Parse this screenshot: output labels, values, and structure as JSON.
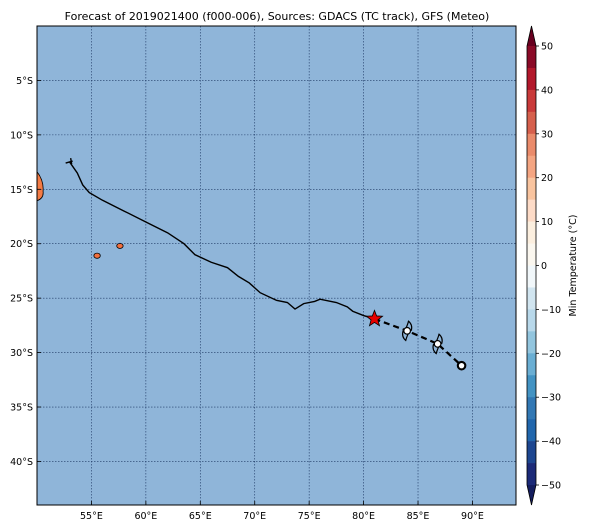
{
  "title": "Forecast of 2019021400 (f000-006), Sources: GDACS (TC track), GFS (Meteo)",
  "map": {
    "lon_range": [
      50,
      94
    ],
    "lat_range": [
      -44,
      0
    ],
    "lon_ticks": [
      {
        "value": 55,
        "label": "55°E"
      },
      {
        "value": 60,
        "label": "60°E"
      },
      {
        "value": 65,
        "label": "65°E"
      },
      {
        "value": 70,
        "label": "70°E"
      },
      {
        "value": 75,
        "label": "75°E"
      },
      {
        "value": 80,
        "label": "80°E"
      },
      {
        "value": 85,
        "label": "85°E"
      },
      {
        "value": 90,
        "label": "90°E"
      }
    ],
    "lat_ticks": [
      {
        "value": -5,
        "label": "5°S"
      },
      {
        "value": -10,
        "label": "10°S"
      },
      {
        "value": -15,
        "label": "15°S"
      },
      {
        "value": -20,
        "label": "20°S"
      },
      {
        "value": -25,
        "label": "25°S"
      },
      {
        "value": -30,
        "label": "30°S"
      },
      {
        "value": -35,
        "label": "35°S"
      },
      {
        "value": -40,
        "label": "40°S"
      }
    ],
    "ocean_color": "#8fb5d9",
    "grid": true,
    "past_track": [
      [
        53.0,
        -12.5
      ],
      [
        53.7,
        -13.5
      ],
      [
        54.2,
        -14.6
      ],
      [
        54.8,
        -15.3
      ],
      [
        56.0,
        -16.0
      ],
      [
        58.0,
        -17.0
      ],
      [
        60.0,
        -18.0
      ],
      [
        62.0,
        -19.0
      ],
      [
        63.5,
        -20.0
      ],
      [
        64.5,
        -21.0
      ],
      [
        66.0,
        -21.7
      ],
      [
        67.5,
        -22.2
      ],
      [
        68.5,
        -23.0
      ],
      [
        69.5,
        -23.6
      ],
      [
        70.5,
        -24.5
      ],
      [
        72.0,
        -25.2
      ],
      [
        73.0,
        -25.4
      ],
      [
        73.7,
        -26.0
      ],
      [
        74.5,
        -25.5
      ],
      [
        75.5,
        -25.3
      ],
      [
        76.0,
        -25.1
      ],
      [
        77.5,
        -25.4
      ],
      [
        78.5,
        -25.8
      ],
      [
        79.0,
        -26.2
      ],
      [
        80.0,
        -26.6
      ],
      [
        81.0,
        -26.9
      ]
    ],
    "current_position": [
      81.0,
      -26.9
    ],
    "forecast_track": [
      [
        81.0,
        -26.9
      ],
      [
        84.0,
        -28.0
      ],
      [
        86.8,
        -29.2
      ],
      [
        89.0,
        -31.2
      ]
    ],
    "forecast_points": [
      {
        "lon": 84.0,
        "lat": -28.0,
        "symbol": "cyclone"
      },
      {
        "lon": 86.8,
        "lat": -29.2,
        "symbol": "cyclone"
      },
      {
        "lon": 89.0,
        "lat": -31.2,
        "symbol": "circle"
      }
    ],
    "land": [
      {
        "name": "madagascar-edge",
        "lon": 50.1,
        "lat": -15.0,
        "color": "#f47b45"
      },
      {
        "name": "reunion",
        "lon": 55.5,
        "lat": -21.1,
        "color": "#f26f3e"
      },
      {
        "name": "mauritius",
        "lon": 57.6,
        "lat": -20.2,
        "color": "#f26f3e"
      }
    ]
  },
  "colorbar": {
    "label": "Min Temperature (°C)",
    "min": -55,
    "max": 55,
    "tick_values": [
      50,
      40,
      30,
      20,
      10,
      0,
      -10,
      -20,
      -30,
      -40,
      -50
    ],
    "tick_labels": [
      "50",
      "40",
      "30",
      "20",
      "10",
      "0",
      "−10",
      "−20",
      "−30",
      "−40",
      "−50"
    ],
    "bands": [
      {
        "from": 50,
        "to": 55,
        "color": "#67001f"
      },
      {
        "from": 45,
        "to": 50,
        "color": "#8a0a27"
      },
      {
        "from": 40,
        "to": 45,
        "color": "#b2182b"
      },
      {
        "from": 35,
        "to": 40,
        "color": "#c93a3a"
      },
      {
        "from": 30,
        "to": 35,
        "color": "#d6604d"
      },
      {
        "from": 25,
        "to": 30,
        "color": "#ea8b6b"
      },
      {
        "from": 20,
        "to": 25,
        "color": "#f4a582"
      },
      {
        "from": 15,
        "to": 20,
        "color": "#f9c49f"
      },
      {
        "from": 10,
        "to": 15,
        "color": "#fddbc7"
      },
      {
        "from": 5,
        "to": 10,
        "color": "#fcefdf"
      },
      {
        "from": 0,
        "to": 5,
        "color": "#fbf7ef"
      },
      {
        "from": -5,
        "to": 0,
        "color": "#f1f7fa"
      },
      {
        "from": -10,
        "to": -5,
        "color": "#d1e5f0"
      },
      {
        "from": -15,
        "to": -10,
        "color": "#b8d8ea"
      },
      {
        "from": -20,
        "to": -15,
        "color": "#92c5de"
      },
      {
        "from": -25,
        "to": -20,
        "color": "#6aaed3"
      },
      {
        "from": -30,
        "to": -25,
        "color": "#4393c3"
      },
      {
        "from": -35,
        "to": -30,
        "color": "#3278b4"
      },
      {
        "from": -40,
        "to": -35,
        "color": "#2166ac"
      },
      {
        "from": -45,
        "to": -40,
        "color": "#1d4690"
      },
      {
        "from": -50,
        "to": -45,
        "color": "#1c2a78"
      },
      {
        "from": -55,
        "to": -50,
        "color": "#141d5e"
      }
    ]
  }
}
